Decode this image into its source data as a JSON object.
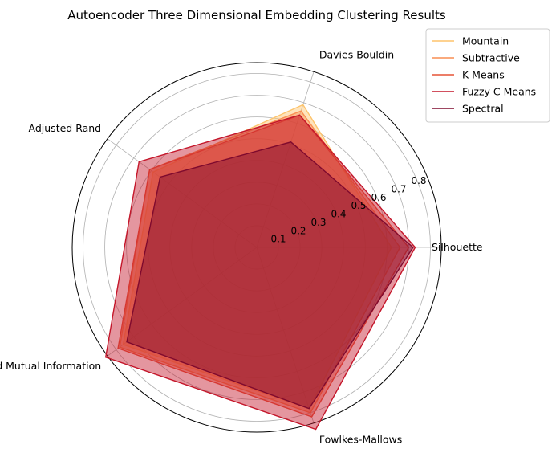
{
  "chart_data": {
    "type": "radar",
    "title": "Autoencoder Three Dimensional Embedding Clustering Results",
    "axes": [
      "Silhouette",
      "Davies Bouldin",
      "Adjusted Rand",
      "Normalized Mutual Information",
      "Fowlkes-Mallows"
    ],
    "r_ticks": [
      "0.1",
      "0.2",
      "0.3",
      "0.4",
      "0.5",
      "0.6",
      "0.7",
      "0.8"
    ],
    "r_tick_values": [
      0.1,
      0.2,
      0.3,
      0.4,
      0.5,
      0.6,
      0.7,
      0.8
    ],
    "r_max": 0.85,
    "grid": true,
    "legend_position": "top-right",
    "series": [
      {
        "name": "Mountain",
        "color": "#fdc46c",
        "values": [
          0.62,
          0.69,
          0.59,
          0.76,
          0.78
        ]
      },
      {
        "name": "Subtractive",
        "color": "#f98e52",
        "values": [
          0.66,
          0.66,
          0.61,
          0.78,
          0.8
        ]
      },
      {
        "name": "K Means",
        "color": "#e65337",
        "values": [
          0.7,
          0.64,
          0.61,
          0.79,
          0.82
        ]
      },
      {
        "name": "Fuzzy C Means",
        "color": "#c4162a",
        "values": [
          0.73,
          0.64,
          0.67,
          0.86,
          0.88
        ]
      },
      {
        "name": "Spectral",
        "color": "#7f0a2e",
        "values": [
          0.72,
          0.51,
          0.55,
          0.74,
          0.78
        ]
      }
    ]
  }
}
